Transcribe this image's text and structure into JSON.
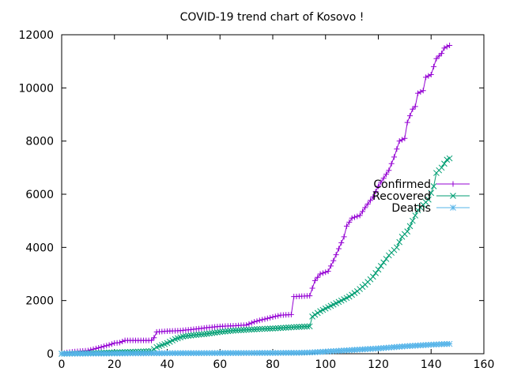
{
  "chart_data": {
    "type": "line",
    "title": "COVID-19 trend chart of Kosovo !",
    "xlabel": "",
    "ylabel": "",
    "xlim": [
      0,
      160
    ],
    "ylim": [
      0,
      12000
    ],
    "x_ticks": [
      0,
      20,
      40,
      60,
      80,
      100,
      120,
      140,
      160
    ],
    "y_ticks": [
      0,
      2000,
      4000,
      6000,
      8000,
      10000,
      12000
    ],
    "x_tick_labels": [
      "0",
      "20",
      "40",
      "60",
      "80",
      "100",
      "120",
      "140",
      "160"
    ],
    "y_tick_labels": [
      "0",
      "2000",
      "4000",
      "6000",
      "8000",
      "10000",
      "12000"
    ],
    "grid": false,
    "legend_position": "right",
    "series": [
      {
        "name": "Confirmed",
        "color": "#9400d3",
        "marker": "plus",
        "points": [
          [
            0,
            0
          ],
          [
            2,
            50
          ],
          [
            5,
            80
          ],
          [
            10,
            120
          ],
          [
            15,
            250
          ],
          [
            18,
            330
          ],
          [
            20,
            400
          ],
          [
            22,
            420
          ],
          [
            24,
            500
          ],
          [
            34,
            500
          ],
          [
            35,
            600
          ],
          [
            36,
            820
          ],
          [
            40,
            850
          ],
          [
            45,
            870
          ],
          [
            50,
            920
          ],
          [
            55,
            980
          ],
          [
            60,
            1030
          ],
          [
            65,
            1050
          ],
          [
            70,
            1080
          ],
          [
            73,
            1200
          ],
          [
            76,
            1280
          ],
          [
            80,
            1380
          ],
          [
            83,
            1450
          ],
          [
            88,
            1480
          ],
          [
            88,
            2150
          ],
          [
            94,
            2180
          ],
          [
            96,
            2750
          ],
          [
            98,
            3000
          ],
          [
            101,
            3100
          ],
          [
            103,
            3500
          ],
          [
            105,
            3950
          ],
          [
            107,
            4400
          ],
          [
            108,
            4800
          ],
          [
            110,
            5100
          ],
          [
            113,
            5200
          ],
          [
            115,
            5500
          ],
          [
            118,
            5900
          ],
          [
            120,
            6300
          ],
          [
            122,
            6600
          ],
          [
            124,
            6900
          ],
          [
            126,
            7400
          ],
          [
            128,
            8000
          ],
          [
            130,
            8100
          ],
          [
            131,
            8700
          ],
          [
            133,
            9200
          ],
          [
            134,
            9300
          ],
          [
            135,
            9800
          ],
          [
            137,
            9900
          ],
          [
            138,
            10400
          ],
          [
            140,
            10500
          ],
          [
            141,
            10800
          ],
          [
            142,
            11100
          ],
          [
            144,
            11300
          ],
          [
            145,
            11500
          ],
          [
            147,
            11600
          ]
        ]
      },
      {
        "name": "Recovered",
        "color": "#009e73",
        "marker": "cross",
        "points": [
          [
            0,
            0
          ],
          [
            10,
            20
          ],
          [
            20,
            50
          ],
          [
            30,
            80
          ],
          [
            34,
            100
          ],
          [
            36,
            250
          ],
          [
            40,
            400
          ],
          [
            43,
            550
          ],
          [
            46,
            650
          ],
          [
            50,
            700
          ],
          [
            55,
            750
          ],
          [
            60,
            820
          ],
          [
            65,
            870
          ],
          [
            70,
            900
          ],
          [
            75,
            930
          ],
          [
            80,
            950
          ],
          [
            85,
            980
          ],
          [
            88,
            1000
          ],
          [
            94,
            1030
          ],
          [
            95,
            1400
          ],
          [
            98,
            1600
          ],
          [
            100,
            1700
          ],
          [
            103,
            1850
          ],
          [
            106,
            2000
          ],
          [
            109,
            2150
          ],
          [
            112,
            2350
          ],
          [
            115,
            2600
          ],
          [
            118,
            2900
          ],
          [
            121,
            3300
          ],
          [
            124,
            3700
          ],
          [
            127,
            4000
          ],
          [
            129,
            4400
          ],
          [
            131,
            4600
          ],
          [
            133,
            5000
          ],
          [
            135,
            5400
          ],
          [
            137,
            5600
          ],
          [
            139,
            5800
          ],
          [
            141,
            6300
          ],
          [
            142,
            6800
          ],
          [
            144,
            7000
          ],
          [
            146,
            7300
          ],
          [
            147,
            7350
          ]
        ]
      },
      {
        "name": "Deaths",
        "color": "#56b4e9",
        "marker": "star",
        "points": [
          [
            0,
            0
          ],
          [
            20,
            10
          ],
          [
            40,
            20
          ],
          [
            60,
            25
          ],
          [
            80,
            30
          ],
          [
            90,
            35
          ],
          [
            95,
            50
          ],
          [
            100,
            80
          ],
          [
            105,
            110
          ],
          [
            110,
            140
          ],
          [
            115,
            170
          ],
          [
            120,
            200
          ],
          [
            125,
            240
          ],
          [
            130,
            280
          ],
          [
            135,
            310
          ],
          [
            140,
            340
          ],
          [
            144,
            360
          ],
          [
            147,
            370
          ]
        ]
      }
    ]
  }
}
